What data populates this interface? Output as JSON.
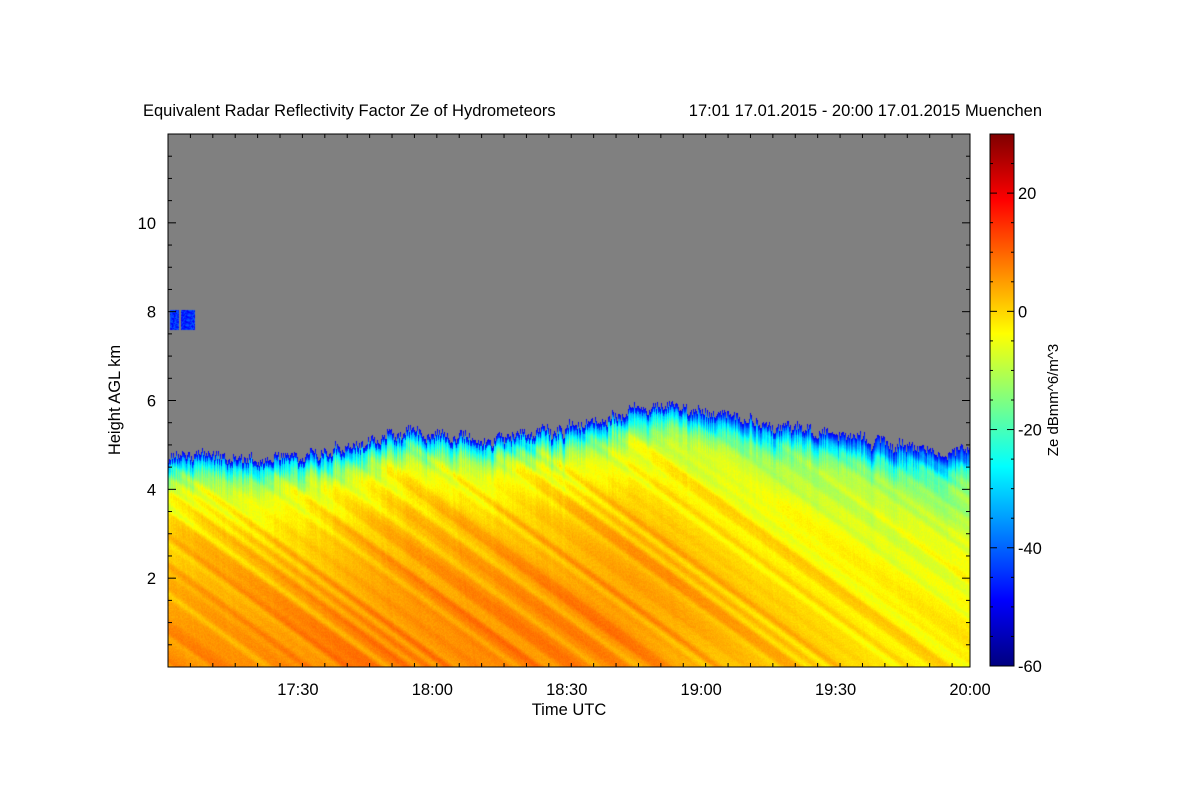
{
  "chart_data": {
    "type": "heatmap",
    "title": "Equivalent Radar Reflectivity Factor Ze of Hydrometeors",
    "subtitle": "17:01 17.01.2015 - 20:00 17.01.2015 Muenchen",
    "xlabel": "Time UTC",
    "ylabel": "Height AGL km",
    "xlim_minutes_utc": [
      1021,
      1200
    ],
    "ylim_km": [
      0,
      12
    ],
    "x_ticks": [
      {
        "label": "17:30",
        "minutes": 1050
      },
      {
        "label": "18:00",
        "minutes": 1080
      },
      {
        "label": "18:30",
        "minutes": 1110
      },
      {
        "label": "19:00",
        "minutes": 1140
      },
      {
        "label": "19:30",
        "minutes": 1170
      },
      {
        "label": "20:00",
        "minutes": 1200
      }
    ],
    "y_ticks": [
      {
        "label": "2",
        "km": 2
      },
      {
        "label": "4",
        "km": 4
      },
      {
        "label": "6",
        "km": 6
      },
      {
        "label": "8",
        "km": 8
      },
      {
        "label": "10",
        "km": 10
      }
    ],
    "colorbar": {
      "label": "Ze dBmm^6/m^3",
      "range": [
        -60,
        30
      ],
      "ticks": [
        {
          "label": "20",
          "value": 20
        },
        {
          "label": "0",
          "value": 0
        },
        {
          "label": "-20",
          "value": -20
        },
        {
          "label": "-40",
          "value": -40
        },
        {
          "label": "-60",
          "value": -60
        }
      ]
    },
    "no_echo_color": "#808080",
    "echo_top_km": [
      {
        "t": 1021,
        "h": 4.75
      },
      {
        "t": 1030,
        "h": 4.8
      },
      {
        "t": 1040,
        "h": 4.65
      },
      {
        "t": 1050,
        "h": 4.7
      },
      {
        "t": 1060,
        "h": 4.95
      },
      {
        "t": 1070,
        "h": 5.2
      },
      {
        "t": 1075,
        "h": 5.3
      },
      {
        "t": 1080,
        "h": 5.25
      },
      {
        "t": 1090,
        "h": 5.1
      },
      {
        "t": 1100,
        "h": 5.25
      },
      {
        "t": 1108,
        "h": 5.3
      },
      {
        "t": 1116,
        "h": 5.55
      },
      {
        "t": 1124,
        "h": 5.75
      },
      {
        "t": 1130,
        "h": 5.9
      },
      {
        "t": 1140,
        "h": 5.8
      },
      {
        "t": 1150,
        "h": 5.55
      },
      {
        "t": 1160,
        "h": 5.4
      },
      {
        "t": 1170,
        "h": 5.2
      },
      {
        "t": 1180,
        "h": 5.05
      },
      {
        "t": 1190,
        "h": 4.85
      },
      {
        "t": 1200,
        "h": 4.9
      }
    ],
    "upper_layer": {
      "t_start": 1021,
      "t_end": 1027,
      "h_min": 7.6,
      "h_max": 8.05,
      "ze": -45
    },
    "ze_profile": [
      {
        "h": 0.0,
        "ze": 6
      },
      {
        "h": 1.0,
        "ze": 5
      },
      {
        "h": 2.0,
        "ze": 3
      },
      {
        "h": 3.0,
        "ze": 0
      },
      {
        "h": 4.0,
        "ze": -6
      },
      {
        "h": 4.6,
        "ze": -20
      },
      {
        "h": 5.0,
        "ze": -30
      },
      {
        "h": 5.5,
        "ze": -40
      }
    ],
    "ze_time_trend": [
      {
        "t": 1021,
        "dze": 0
      },
      {
        "t": 1090,
        "dze": 1
      },
      {
        "t": 1120,
        "dze": 0
      },
      {
        "t": 1150,
        "dze": -4
      },
      {
        "t": 1180,
        "dze": -7
      },
      {
        "t": 1200,
        "dze": -8
      }
    ]
  }
}
